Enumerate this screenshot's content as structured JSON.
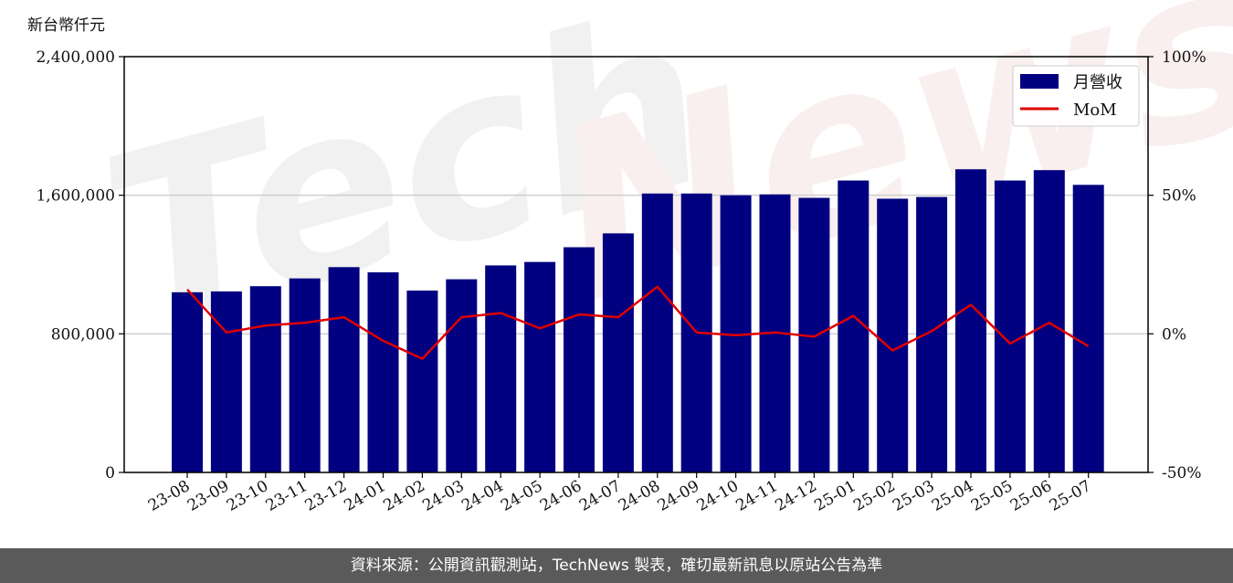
{
  "chart_data": {
    "type": "bar",
    "y_unit_label": "新台幣仟元",
    "categories": [
      "23-08",
      "23-09",
      "23-10",
      "23-11",
      "23-12",
      "24-01",
      "24-02",
      "24-03",
      "24-04",
      "24-05",
      "24-06",
      "24-07",
      "24-08",
      "24-09",
      "24-10",
      "24-11",
      "24-12",
      "25-01",
      "25-02",
      "25-03",
      "25-04",
      "25-05",
      "25-06",
      "25-07"
    ],
    "series": [
      {
        "name": "月營收",
        "type": "bar",
        "axis": "left",
        "color": "#000080",
        "values": [
          1040000,
          1045000,
          1075000,
          1120000,
          1185000,
          1155000,
          1050000,
          1115000,
          1195000,
          1215000,
          1300000,
          1380000,
          1610000,
          1610000,
          1600000,
          1605000,
          1585000,
          1685000,
          1580000,
          1590000,
          1750000,
          1685000,
          1745000,
          1660000
        ]
      },
      {
        "name": "MoM",
        "type": "line",
        "axis": "right",
        "color": "#e00000",
        "values": [
          16,
          0.5,
          3,
          4,
          6,
          -2.5,
          -9,
          6,
          7.5,
          2,
          7,
          6,
          17,
          0.5,
          -0.5,
          0.5,
          -1,
          6.5,
          -6,
          1,
          10.5,
          -3.5,
          4,
          -4.5
        ]
      }
    ],
    "y_left": {
      "min": 0,
      "max": 2400000,
      "ticks": [
        "0",
        "800,000",
        "1,600,000",
        "2,400,000"
      ]
    },
    "y_right": {
      "min": -50,
      "max": 100,
      "ticks": [
        "-50%",
        "0%",
        "50%",
        "100%"
      ]
    },
    "grid": true,
    "legend_position": "top-right",
    "watermark": "TechNews"
  },
  "footer": {
    "source_text": "資料來源：公開資訊觀測站，TechNews 製表，確切最新訊息以原站公告為準"
  }
}
